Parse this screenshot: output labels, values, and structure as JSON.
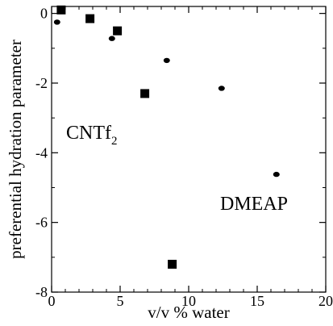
{
  "chart_data": {
    "type": "scatter",
    "xlabel": "v/v % water",
    "ylabel": "preferential hydration parameter",
    "xlim": [
      0,
      20
    ],
    "ylim": [
      -8,
      0.2
    ],
    "x_ticks": [
      0,
      5,
      10,
      15,
      20
    ],
    "y_ticks": [
      0,
      -2,
      -4,
      -6,
      -8
    ],
    "grid": false,
    "series": [
      {
        "name": "CNTf2",
        "marker": "square",
        "color": "#000000",
        "points": [
          {
            "x": 0.7,
            "y": 0.1
          },
          {
            "x": 2.8,
            "y": -0.15
          },
          {
            "x": 4.8,
            "y": -0.5
          },
          {
            "x": 6.8,
            "y": -2.3
          },
          {
            "x": 8.8,
            "y": -7.2
          }
        ]
      },
      {
        "name": "DMEAP",
        "marker": "circle",
        "color": "#000000",
        "points": [
          {
            "x": 0.4,
            "y": -0.25
          },
          {
            "x": 4.4,
            "y": -0.72
          },
          {
            "x": 8.4,
            "y": -1.35
          },
          {
            "x": 12.4,
            "y": -2.15
          },
          {
            "x": 16.4,
            "y": -4.62
          }
        ]
      }
    ],
    "annotations": [
      {
        "text_main": "CNTf",
        "text_sub": "2"
      },
      {
        "text": "DMEAP"
      }
    ]
  }
}
